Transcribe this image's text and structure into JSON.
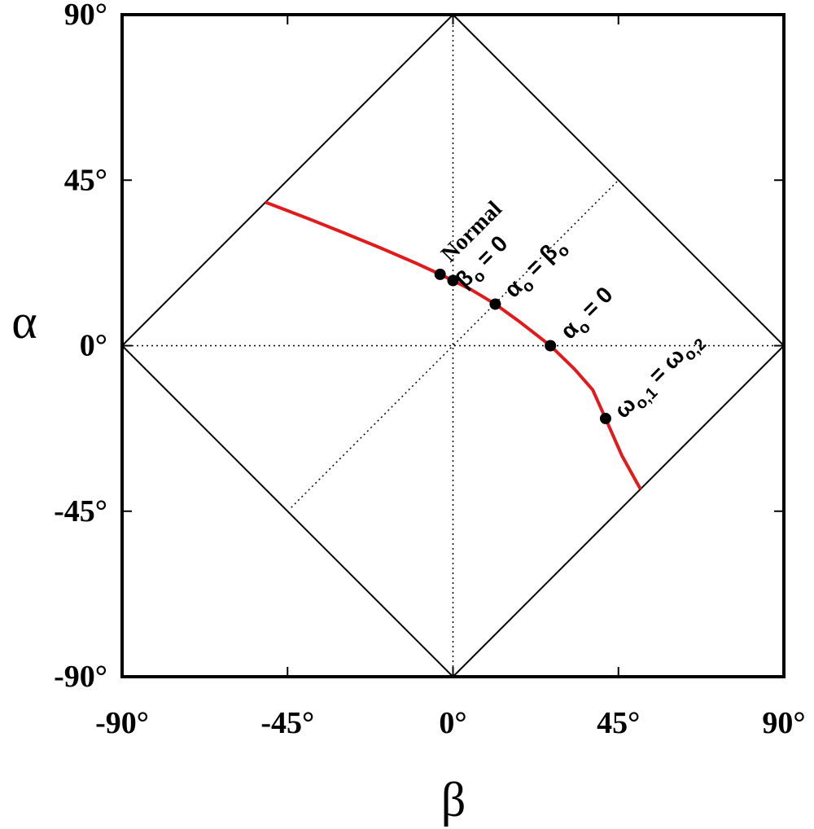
{
  "chart_data": {
    "type": "line",
    "xlabel": "β",
    "ylabel": "α",
    "xlim": [
      -90,
      90
    ],
    "ylim": [
      -90,
      90
    ],
    "x_ticks": [
      "-90°",
      "-45°",
      "0°",
      "45°",
      "90°"
    ],
    "y_ticks": [
      "90°",
      "45°",
      "0°",
      "-45°",
      "-90°"
    ],
    "boundary": {
      "type": "diamond",
      "vertices": [
        [
          0,
          90
        ],
        [
          90,
          0
        ],
        [
          0,
          -90
        ],
        [
          -90,
          0
        ]
      ]
    },
    "reference_lines": [
      {
        "style": "dotted",
        "from": [
          0,
          -90
        ],
        "to": [
          0,
          90
        ]
      },
      {
        "style": "dotted",
        "from": [
          -90,
          0
        ],
        "to": [
          90,
          0
        ]
      },
      {
        "style": "dotted",
        "from": [
          -44,
          -44
        ],
        "to": [
          45,
          45
        ]
      }
    ],
    "series": [
      {
        "color": "#e31a1c",
        "x": [
          -51,
          -40,
          -30,
          -20,
          -10,
          -3.5,
          0,
          5,
          11.5,
          18,
          26.5,
          33,
          38,
          41.5,
          46,
          51
        ],
        "y": [
          39,
          34.8,
          30.8,
          26.7,
          22.4,
          19.4,
          17.7,
          15.2,
          11.3,
          6.6,
          0,
          -6.3,
          -12,
          -19.8,
          -30,
          -39
        ]
      }
    ],
    "points": [
      {
        "x": -3.5,
        "y": 19.4,
        "label": "Normal"
      },
      {
        "x": 0,
        "y": 17.7,
        "label": "β° = 0"
      },
      {
        "x": 11.5,
        "y": 11.3,
        "label": "α° = β°"
      },
      {
        "x": 26.5,
        "y": 0,
        "label": "α° = 0"
      },
      {
        "x": 41.5,
        "y": -19.8,
        "label": "ω°,1 = ω°,2"
      }
    ]
  },
  "annotations": {
    "normal": "Normal",
    "beta_eq": {
      "sym": "β",
      "sub": "o",
      "rest": " = 0"
    },
    "alpha_eq_beta": {
      "sym1": "α",
      "sub1": "o",
      "mid": " = ",
      "sym2": "β",
      "sub2": "o"
    },
    "alpha_eq": {
      "sym": "α",
      "sub": "o",
      "rest": " = 0"
    },
    "omega_eq": {
      "sym1": "ω",
      "sub1": "o,1",
      "mid": " = ",
      "sym2": "ω",
      "sub2": "o,2"
    }
  },
  "colors": {
    "curve": "#e31a1c",
    "axes": "#000000",
    "points": "#000000"
  }
}
